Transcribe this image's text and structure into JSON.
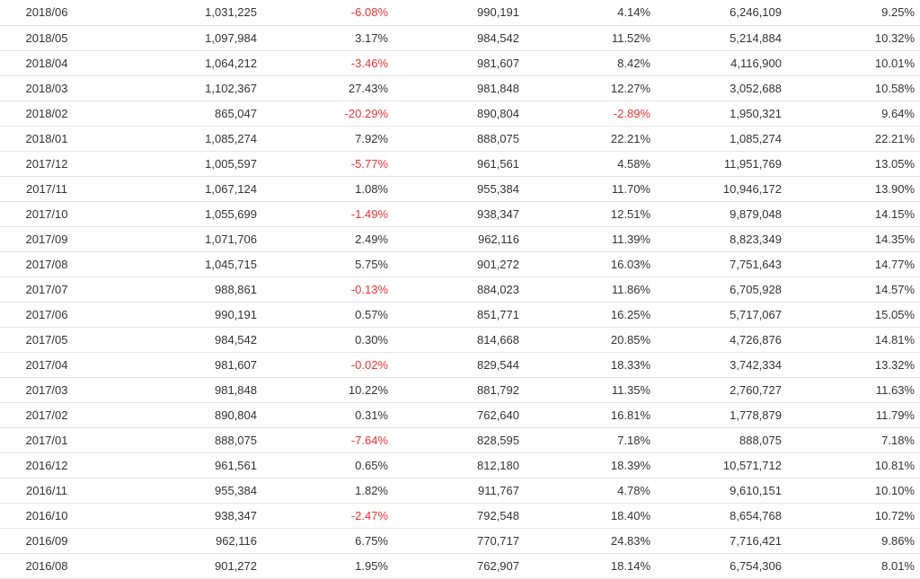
{
  "colors": {
    "negative": "#ee3333",
    "text": "#333333",
    "row_border": "#e6e6e6"
  },
  "table": {
    "rows": [
      [
        "2018/06",
        "1,031,225",
        "-6.08%",
        "990,191",
        "4.14%",
        "6,246,109",
        "9.25%"
      ],
      [
        "2018/05",
        "1,097,984",
        "3.17%",
        "984,542",
        "11.52%",
        "5,214,884",
        "10.32%"
      ],
      [
        "2018/04",
        "1,064,212",
        "-3.46%",
        "981,607",
        "8.42%",
        "4,116,900",
        "10.01%"
      ],
      [
        "2018/03",
        "1,102,367",
        "27.43%",
        "981,848",
        "12.27%",
        "3,052,688",
        "10.58%"
      ],
      [
        "2018/02",
        "865,047",
        "-20.29%",
        "890,804",
        "-2.89%",
        "1,950,321",
        "9.64%"
      ],
      [
        "2018/01",
        "1,085,274",
        "7.92%",
        "888,075",
        "22.21%",
        "1,085,274",
        "22.21%"
      ],
      [
        "2017/12",
        "1,005,597",
        "-5.77%",
        "961,561",
        "4.58%",
        "11,951,769",
        "13.05%"
      ],
      [
        "2017/11",
        "1,067,124",
        "1.08%",
        "955,384",
        "11.70%",
        "10,946,172",
        "13.90%"
      ],
      [
        "2017/10",
        "1,055,699",
        "-1.49%",
        "938,347",
        "12.51%",
        "9,879,048",
        "14.15%"
      ],
      [
        "2017/09",
        "1,071,706",
        "2.49%",
        "962,116",
        "11.39%",
        "8,823,349",
        "14.35%"
      ],
      [
        "2017/08",
        "1,045,715",
        "5.75%",
        "901,272",
        "16.03%",
        "7,751,643",
        "14.77%"
      ],
      [
        "2017/07",
        "988,861",
        "-0.13%",
        "884,023",
        "11.86%",
        "6,705,928",
        "14.57%"
      ],
      [
        "2017/06",
        "990,191",
        "0.57%",
        "851,771",
        "16.25%",
        "5,717,067",
        "15.05%"
      ],
      [
        "2017/05",
        "984,542",
        "0.30%",
        "814,668",
        "20.85%",
        "4,726,876",
        "14.81%"
      ],
      [
        "2017/04",
        "981,607",
        "-0.02%",
        "829,544",
        "18.33%",
        "3,742,334",
        "13.32%"
      ],
      [
        "2017/03",
        "981,848",
        "10.22%",
        "881,792",
        "11.35%",
        "2,760,727",
        "11.63%"
      ],
      [
        "2017/02",
        "890,804",
        "0.31%",
        "762,640",
        "16.81%",
        "1,778,879",
        "11.79%"
      ],
      [
        "2017/01",
        "888,075",
        "-7.64%",
        "828,595",
        "7.18%",
        "888,075",
        "7.18%"
      ],
      [
        "2016/12",
        "961,561",
        "0.65%",
        "812,180",
        "18.39%",
        "10,571,712",
        "10.81%"
      ],
      [
        "2016/11",
        "955,384",
        "1.82%",
        "911,767",
        "4.78%",
        "9,610,151",
        "10.10%"
      ],
      [
        "2016/10",
        "938,347",
        "-2.47%",
        "792,548",
        "18.40%",
        "8,654,768",
        "10.72%"
      ],
      [
        "2016/09",
        "962,116",
        "6.75%",
        "770,717",
        "24.83%",
        "7,716,421",
        "9.86%"
      ],
      [
        "2016/08",
        "901,272",
        "1.95%",
        "762,907",
        "18.14%",
        "6,754,306",
        "8.01%"
      ]
    ]
  }
}
